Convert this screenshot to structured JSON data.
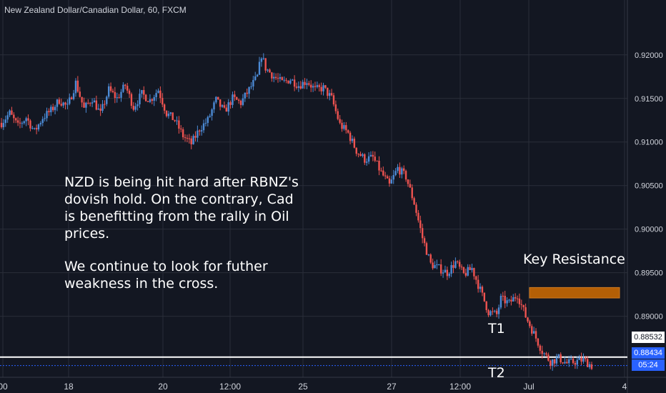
{
  "header": {
    "title": "New Zealand Dollar/Canadian Dollar, 60, FXCM"
  },
  "annotations": {
    "paragraph_1": "NZD is being hit hard after RBNZ's dovish hold. On the contrary, Cad is benefitting from the rally in Oil prices.",
    "paragraph_2": "We continue to look for futher weakness in the cross."
  },
  "zone": {
    "label": "Key Resistance",
    "low": 0.8921,
    "high": 0.8933,
    "color": "#b45f06"
  },
  "targets": {
    "t1_label": "T1",
    "t2_label": "T2"
  },
  "price_tags": {
    "level": "0.88532",
    "last": "0.88434",
    "timer": "05:24"
  },
  "colors": {
    "background": "#131722",
    "grid": "#2a2e39",
    "up": "#4c8bd6",
    "down": "#ef5350",
    "axis_text": "#d1d4dc"
  },
  "chart_data": {
    "type": "candlestick",
    "y_axis": {
      "ticks": [
        0.92,
        0.915,
        0.91,
        0.905,
        0.9,
        0.895,
        0.89
      ],
      "tick_labels": [
        "0.92000",
        "0.91500",
        "0.91000",
        "0.90500",
        "0.90000",
        "0.89500",
        "0.89000"
      ],
      "range": [
        0.883,
        0.924
      ]
    },
    "x_axis": {
      "tick_labels": [
        "00",
        "18",
        "20",
        "12:00",
        "25",
        "27",
        "12:00",
        "Jul",
        "4"
      ]
    },
    "horizontal_levels": [
      {
        "name": "T1",
        "value": 0.88532,
        "style": "solid",
        "color": "#ffffff"
      },
      {
        "name": "last-price",
        "value": 0.88434,
        "style": "dotted",
        "color": "#2962ff"
      }
    ],
    "close_path": [
      [
        0,
        0.9122
      ],
      [
        4,
        0.9133
      ],
      [
        8,
        0.9118
      ],
      [
        12,
        0.9128
      ],
      [
        16,
        0.9112
      ],
      [
        20,
        0.9128
      ],
      [
        24,
        0.9136
      ],
      [
        28,
        0.9148
      ],
      [
        32,
        0.914
      ],
      [
        36,
        0.9168
      ],
      [
        40,
        0.9138
      ],
      [
        44,
        0.915
      ],
      [
        48,
        0.9132
      ],
      [
        52,
        0.916
      ],
      [
        56,
        0.915
      ],
      [
        60,
        0.9165
      ],
      [
        64,
        0.914
      ],
      [
        68,
        0.9155
      ],
      [
        72,
        0.9148
      ],
      [
        76,
        0.916
      ],
      [
        80,
        0.9133
      ],
      [
        84,
        0.9125
      ],
      [
        88,
        0.9107
      ],
      [
        92,
        0.9098
      ],
      [
        96,
        0.9115
      ],
      [
        100,
        0.9125
      ],
      [
        104,
        0.9148
      ],
      [
        108,
        0.9135
      ],
      [
        112,
        0.915
      ],
      [
        116,
        0.9145
      ],
      [
        120,
        0.916
      ],
      [
        124,
        0.9175
      ],
      [
        126,
        0.92
      ],
      [
        128,
        0.9185
      ],
      [
        132,
        0.9175
      ],
      [
        136,
        0.9168
      ],
      [
        140,
        0.9172
      ],
      [
        144,
        0.9165
      ],
      [
        148,
        0.917
      ],
      [
        152,
        0.916
      ],
      [
        156,
        0.9162
      ],
      [
        160,
        0.915
      ],
      [
        164,
        0.912
      ],
      [
        168,
        0.911
      ],
      [
        172,
        0.909
      ],
      [
        176,
        0.908
      ],
      [
        180,
        0.9082
      ],
      [
        184,
        0.9065
      ],
      [
        188,
        0.905
      ],
      [
        192,
        0.907
      ],
      [
        196,
        0.906
      ],
      [
        200,
        0.903
      ],
      [
        204,
        0.899
      ],
      [
        208,
        0.896
      ],
      [
        212,
        0.8955
      ],
      [
        216,
        0.895
      ],
      [
        220,
        0.8962
      ],
      [
        224,
        0.8948
      ],
      [
        228,
        0.8955
      ],
      [
        232,
        0.893
      ],
      [
        236,
        0.8905
      ],
      [
        240,
        0.8902
      ],
      [
        242,
        0.892
      ],
      [
        246,
        0.8915
      ],
      [
        250,
        0.8925
      ],
      [
        254,
        0.89
      ],
      [
        258,
        0.888
      ],
      [
        262,
        0.886
      ],
      [
        266,
        0.8848
      ],
      [
        270,
        0.8852
      ],
      [
        274,
        0.8846
      ],
      [
        278,
        0.8848
      ],
      [
        282,
        0.885
      ],
      [
        286,
        0.8843
      ]
    ]
  }
}
